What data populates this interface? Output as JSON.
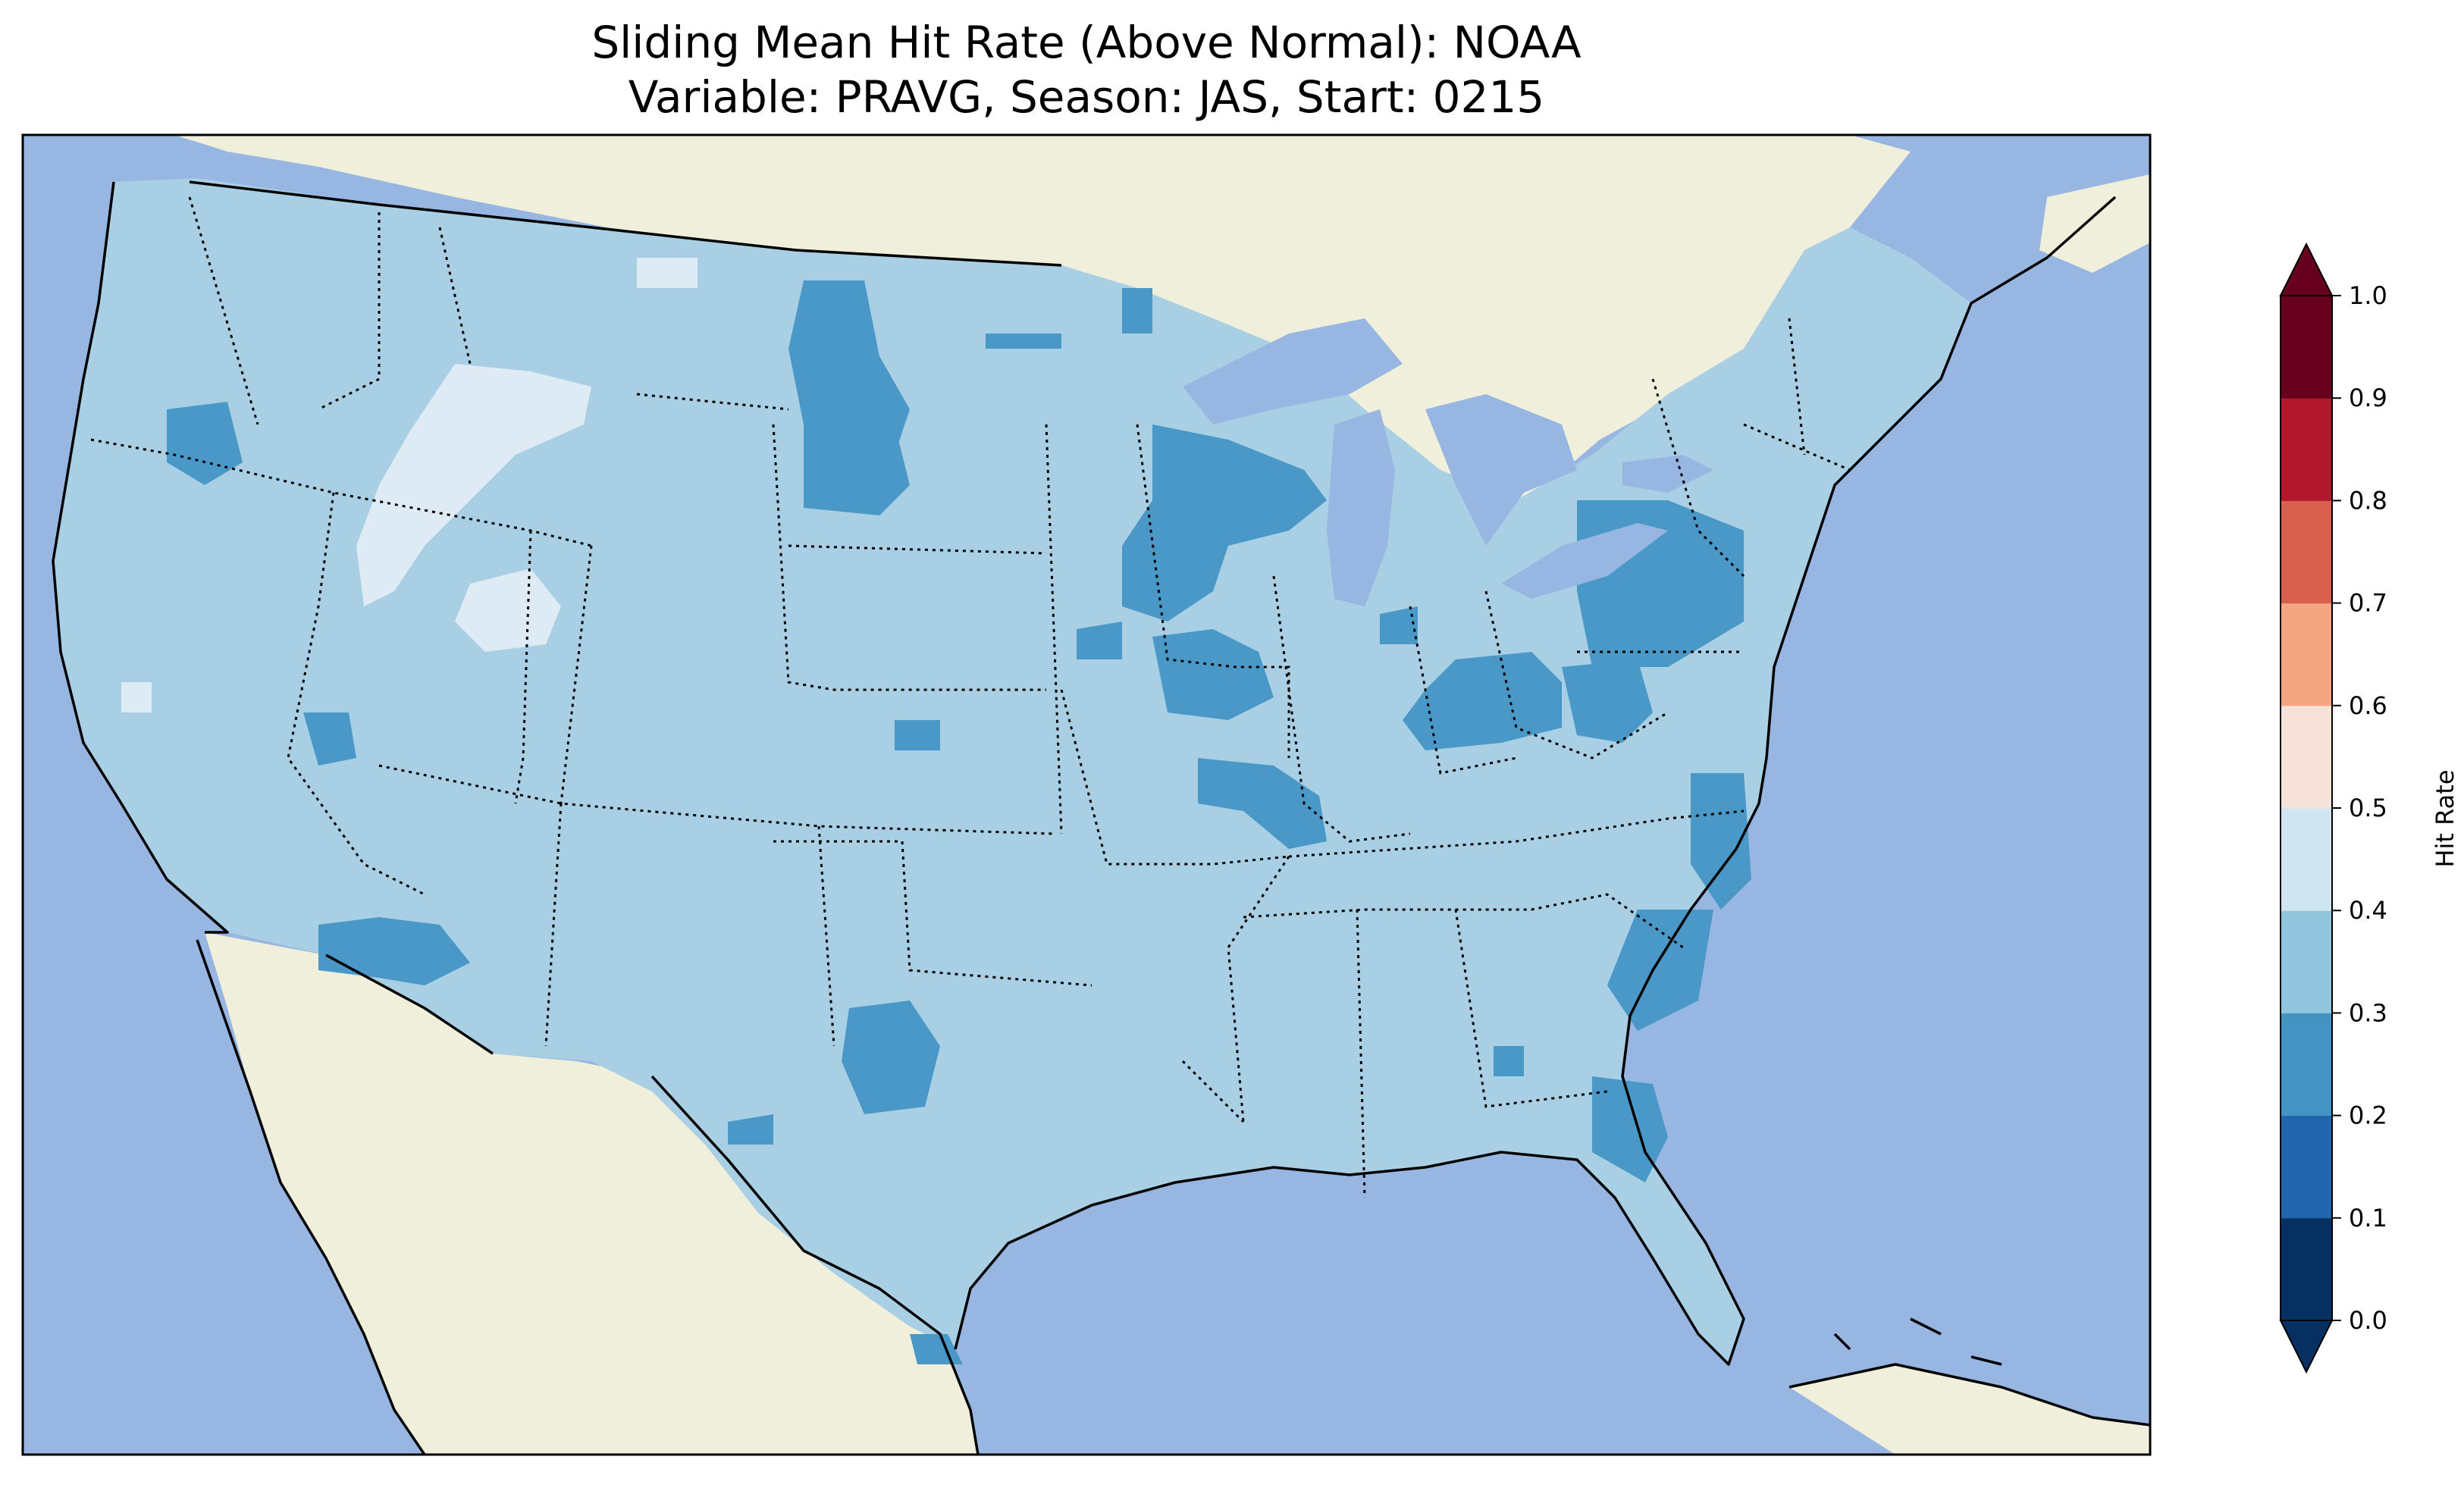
{
  "title": {
    "line1": "Sliding Mean Hit Rate (Above Normal): NOAA",
    "line2": "Variable: PRAVG, Season: JAS, Start: 0215"
  },
  "map": {
    "region": "Contiguous United States",
    "projection": "plate-carree",
    "colors": {
      "ocean": "#97b6e1",
      "land": "#efefdb",
      "lakes": "#97b6e1",
      "coastline": "#000000",
      "state_borders": "#000000"
    },
    "field_colors": {
      "0.2-0.3": "#4a98c8",
      "0.3-0.4": "#a8cfe3",
      "0.4-0.5": "#deebf4"
    },
    "dominant_range": "0.3-0.4"
  },
  "colorbar": {
    "label": "Hit Rate",
    "ticks": [
      "0.0",
      "0.1",
      "0.2",
      "0.3",
      "0.4",
      "0.5",
      "0.6",
      "0.7",
      "0.8",
      "0.9",
      "1.0"
    ],
    "bins": [
      {
        "range": [
          0.0,
          0.1
        ],
        "color": "#053061"
      },
      {
        "range": [
          0.1,
          0.2
        ],
        "color": "#2166ac"
      },
      {
        "range": [
          0.2,
          0.3
        ],
        "color": "#4393c3"
      },
      {
        "range": [
          0.3,
          0.4
        ],
        "color": "#92c5de"
      },
      {
        "range": [
          0.4,
          0.5
        ],
        "color": "#d1e5f0"
      },
      {
        "range": [
          0.5,
          0.6
        ],
        "color": "#f7e3da"
      },
      {
        "range": [
          0.6,
          0.7
        ],
        "color": "#f4a582"
      },
      {
        "range": [
          0.7,
          0.8
        ],
        "color": "#d6604d"
      },
      {
        "range": [
          0.8,
          0.9
        ],
        "color": "#b2182b"
      },
      {
        "range": [
          0.9,
          1.0
        ],
        "color": "#67001f"
      }
    ],
    "extend": "both"
  }
}
